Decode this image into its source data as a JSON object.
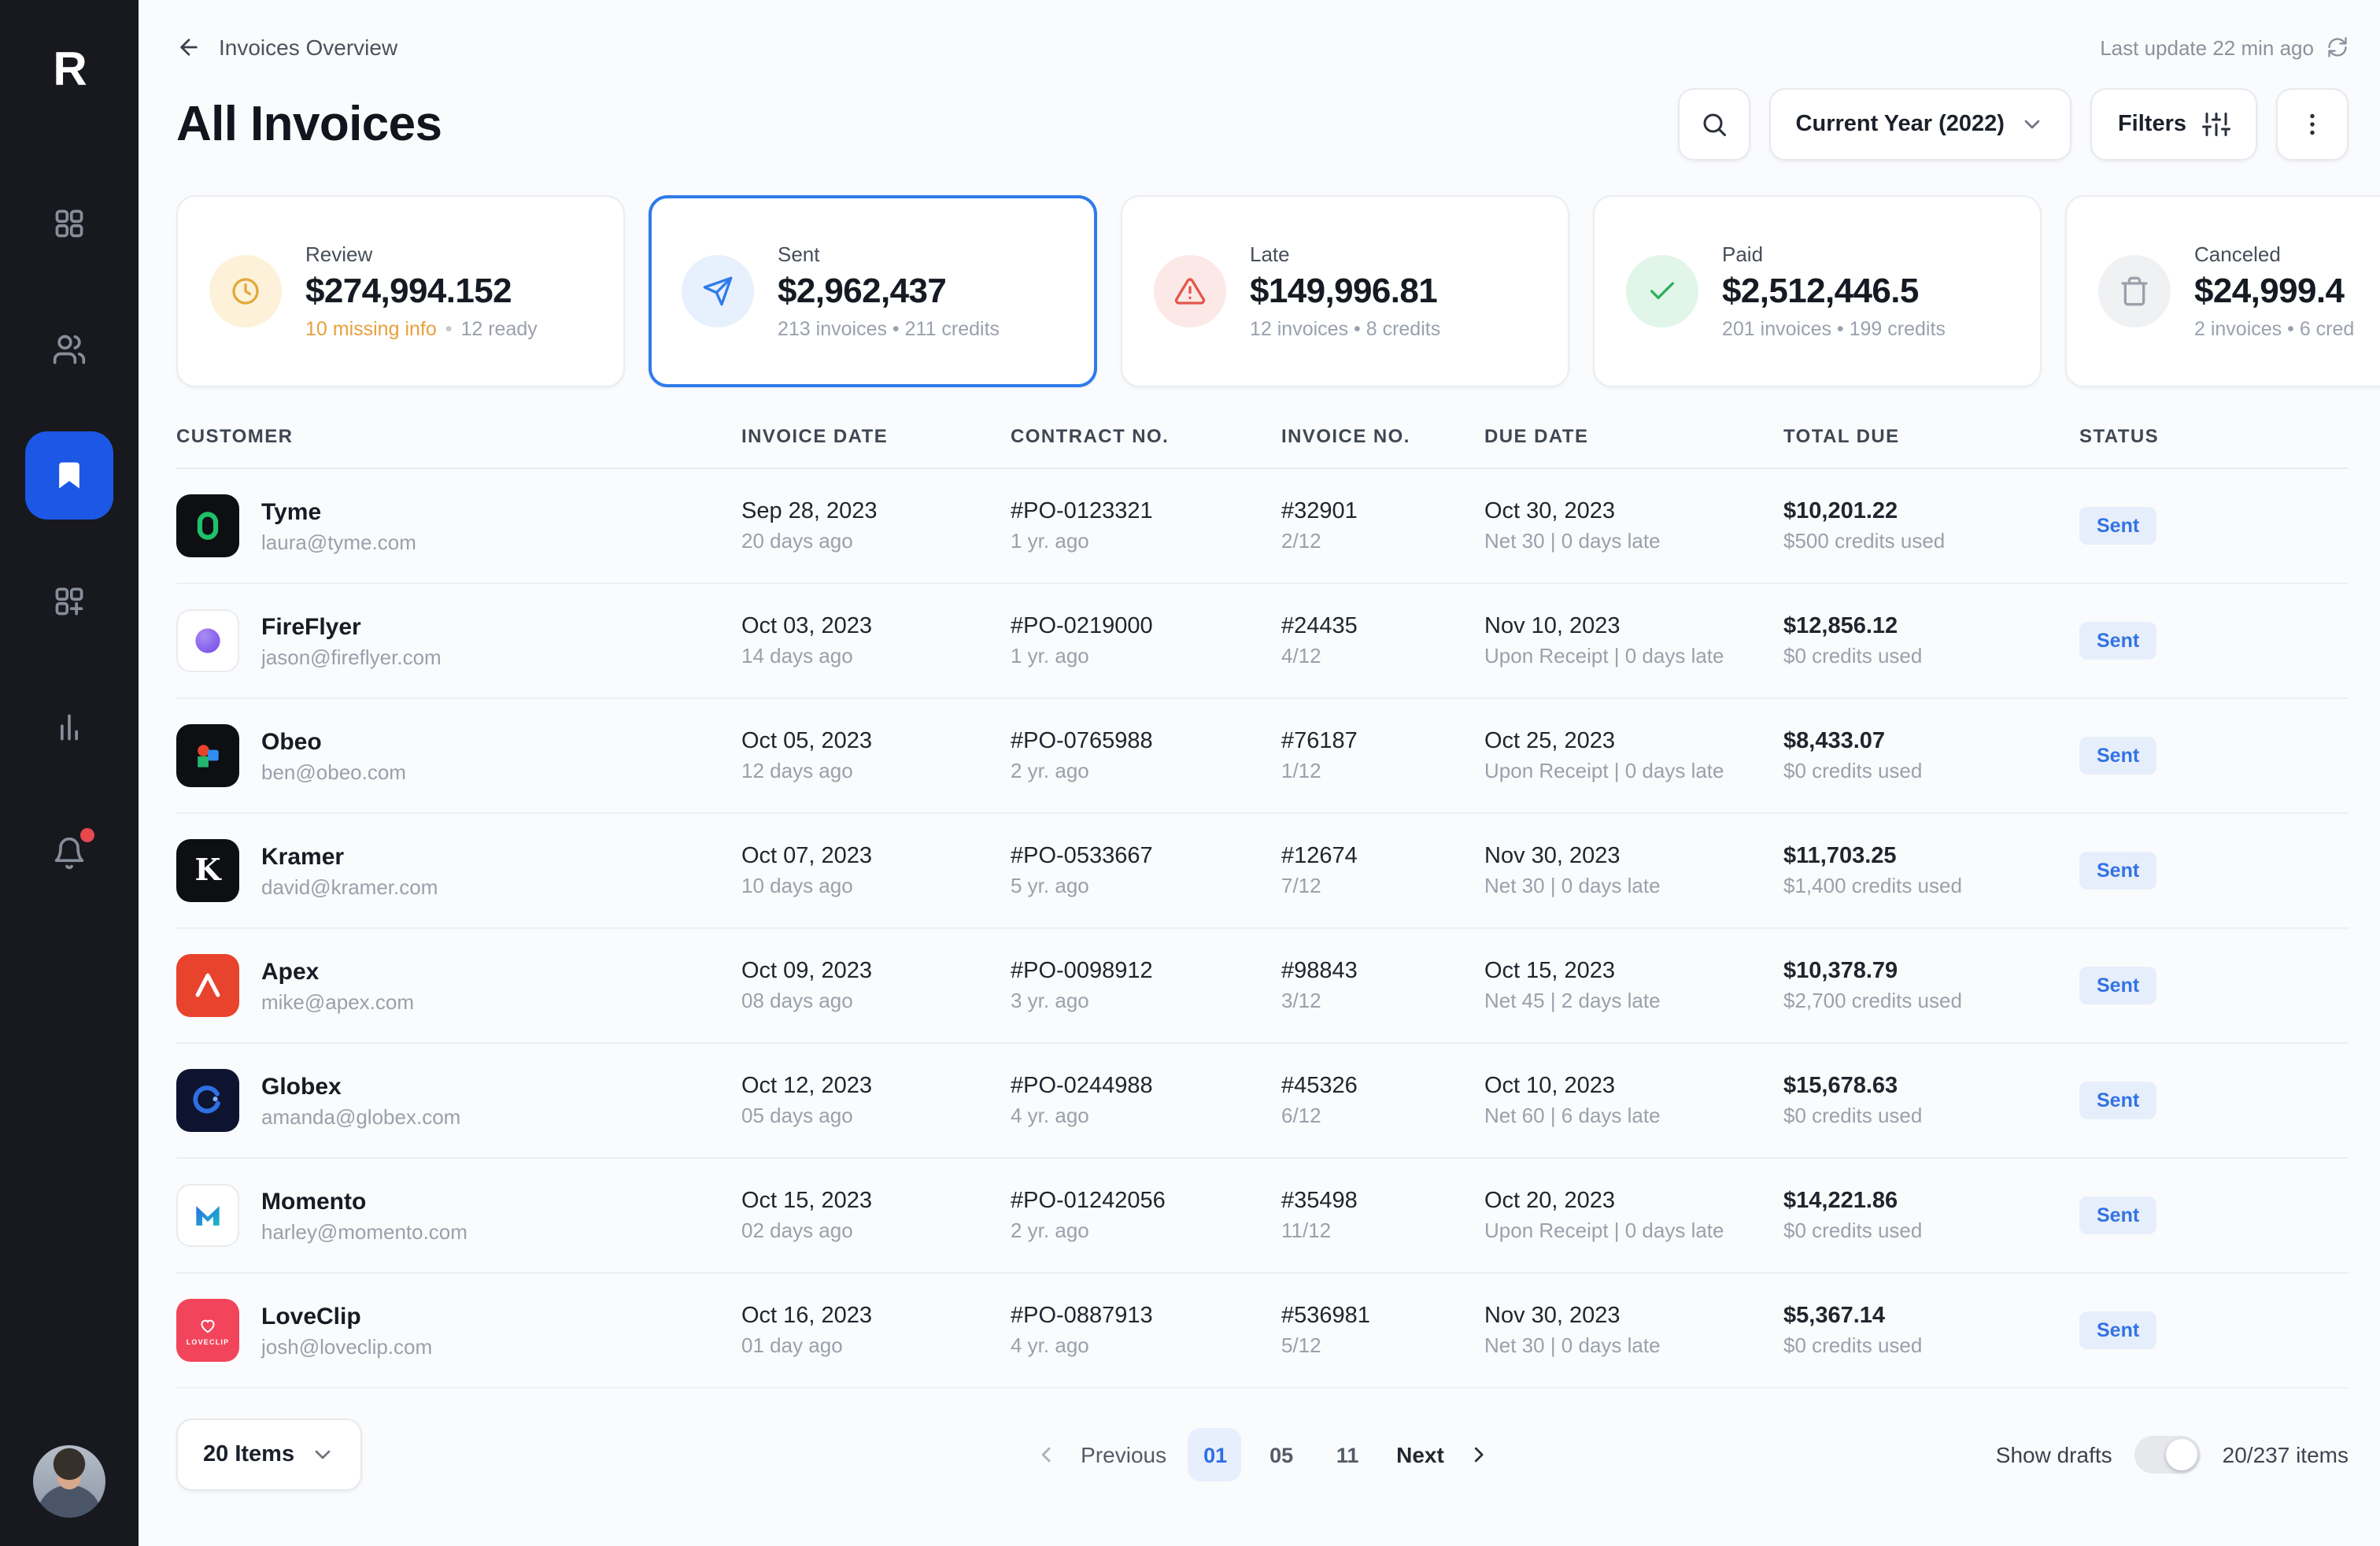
{
  "app": {
    "logo_letter": "R"
  },
  "ui": {
    "bullet": "•"
  },
  "colors": {
    "accent_blue": "#2f6fe4",
    "sidebar_active": "#1d57e6",
    "badge_bg": "#e7eefb",
    "warning_orange": "#e7a03c",
    "danger_red": "#e2574c",
    "success_green": "#2fae5d",
    "sidebar_bg": "#17191f"
  },
  "sidebar": {
    "items": [
      {
        "key": "apps",
        "icon": "apps-grid-icon"
      },
      {
        "key": "customers",
        "icon": "users-icon"
      },
      {
        "key": "invoices",
        "icon": "bookmark-icon",
        "active": true
      },
      {
        "key": "widgets",
        "icon": "widgets-icon"
      },
      {
        "key": "reports",
        "icon": "bar-chart-icon"
      },
      {
        "key": "notifications",
        "icon": "bell-icon",
        "badge": true
      }
    ]
  },
  "header": {
    "breadcrumb": "Invoices Overview",
    "last_update": "Last update 22 min ago",
    "title": "All Invoices",
    "year_filter": "Current Year (2022)",
    "filters_label": "Filters"
  },
  "summary_cards": [
    {
      "label": "Review",
      "amount": "$274,994.152",
      "sub_em": "10 missing info",
      "sub": "12 ready",
      "icon": "clock-icon",
      "icon_bg": "#fdf2d9",
      "icon_color": "#e2a93b",
      "selected": false
    },
    {
      "label": "Sent",
      "amount": "$2,962,437",
      "sub_em": "",
      "sub": "213 invoices • 211 credits",
      "icon": "send-icon",
      "icon_bg": "#e7f0fd",
      "icon_color": "#2f7bea",
      "selected": true
    },
    {
      "label": "Late",
      "amount": "$149,996.81",
      "sub_em": "",
      "sub": "12 invoices • 8 credits",
      "icon": "alert-icon",
      "icon_bg": "#fce9e7",
      "icon_color": "#e2574c",
      "selected": false
    },
    {
      "label": "Paid",
      "amount": "$2,512,446.5",
      "sub_em": "",
      "sub": "201 invoices • 199 credits",
      "icon": "check-icon",
      "icon_bg": "#e1f6e9",
      "icon_color": "#2fae5d",
      "selected": false
    },
    {
      "label": "Canceled",
      "amount": "$24,999.4",
      "sub_em": "",
      "sub": "2 invoices • 6 cred",
      "icon": "trash-icon",
      "icon_bg": "#f0f1f3",
      "icon_color": "#9aa1ab",
      "selected": false
    }
  ],
  "table": {
    "columns": [
      "CUSTOMER",
      "INVOICE DATE",
      "CONTRACT NO.",
      "INVOICE NO.",
      "DUE DATE",
      "TOTAL DUE",
      "STATUS"
    ],
    "rows": [
      {
        "customer": "Tyme",
        "email": "laura@tyme.com",
        "logo": {
          "kind": "ring",
          "bg": "#0d0f12",
          "fg": "#1fc06a"
        },
        "invoice_date": "Sep 28, 2023",
        "invoice_date_sub": "20 days ago",
        "contract_no": "#PO-0123321",
        "contract_sub": "1 yr. ago",
        "invoice_no": "#32901",
        "invoice_no_sub": "2/12",
        "due_date": "Oct 30, 2023",
        "due_sub": "Net 30 | 0 days late",
        "total_due": "$10,201.22",
        "total_sub": "$500 credits used",
        "status": "Sent"
      },
      {
        "customer": "FireFlyer",
        "email": "jason@fireflyer.com",
        "logo": {
          "kind": "blob",
          "bg": "#ffffff",
          "fg": "#7a52ea",
          "border": true
        },
        "invoice_date": "Oct 03, 2023",
        "invoice_date_sub": "14 days ago",
        "contract_no": "#PO-0219000",
        "contract_sub": "1 yr. ago",
        "invoice_no": "#24435",
        "invoice_no_sub": "4/12",
        "due_date": "Nov 10, 2023",
        "due_sub": "Upon Receipt | 0 days late",
        "total_due": "$12,856.12",
        "total_sub": "$0 credits used",
        "status": "Sent"
      },
      {
        "customer": "Obeo",
        "email": "ben@obeo.com",
        "logo": {
          "kind": "shapes",
          "bg": "#0d0f12",
          "fg": "#e8432d"
        },
        "invoice_date": "Oct 05, 2023",
        "invoice_date_sub": "12 days ago",
        "contract_no": "#PO-0765988",
        "contract_sub": "2 yr. ago",
        "invoice_no": "#76187",
        "invoice_no_sub": "1/12",
        "due_date": "Oct 25, 2023",
        "due_sub": "Upon Receipt | 0 days late",
        "total_due": "$8,433.07",
        "total_sub": "$0 credits used",
        "status": "Sent"
      },
      {
        "customer": "Kramer",
        "email": "david@kramer.com",
        "logo": {
          "kind": "letter-k",
          "bg": "#0d0f12",
          "fg": "#ffffff"
        },
        "invoice_date": "Oct 07, 2023",
        "invoice_date_sub": "10 days ago",
        "contract_no": "#PO-0533667",
        "contract_sub": "5 yr. ago",
        "invoice_no": "#12674",
        "invoice_no_sub": "7/12",
        "due_date": "Nov 30, 2023",
        "due_sub": "Net 30 | 0 days late",
        "total_due": "$11,703.25",
        "total_sub": "$1,400 credits used",
        "status": "Sent"
      },
      {
        "customer": "Apex",
        "email": "mike@apex.com",
        "logo": {
          "kind": "peak",
          "bg": "#e8432d",
          "fg": "#ffffff"
        },
        "invoice_date": "Oct 09, 2023",
        "invoice_date_sub": "08 days ago",
        "contract_no": "#PO-0098912",
        "contract_sub": "3 yr. ago",
        "invoice_no": "#98843",
        "invoice_no_sub": "3/12",
        "due_date": "Oct 15, 2023",
        "due_sub": "Net 45 | 2 days late",
        "total_due": "$10,378.79",
        "total_sub": "$2,700 credits used",
        "status": "Sent"
      },
      {
        "customer": "Globex",
        "email": "amanda@globex.com",
        "logo": {
          "kind": "crescent",
          "bg": "#0e1430",
          "fg": "#2f6fe4"
        },
        "invoice_date": "Oct 12, 2023",
        "invoice_date_sub": "05 days ago",
        "contract_no": "#PO-0244988",
        "contract_sub": "4 yr. ago",
        "invoice_no": "#45326",
        "invoice_no_sub": "6/12",
        "due_date": "Oct 10, 2023",
        "due_sub": "Net 60 | 6 days late",
        "total_due": "$15,678.63",
        "total_sub": "$0 credits used",
        "status": "Sent"
      },
      {
        "customer": "Momento",
        "email": "harley@momento.com",
        "logo": {
          "kind": "letter-m",
          "bg": "#ffffff",
          "fg": "#2f6fe4",
          "border": true
        },
        "invoice_date": "Oct 15, 2023",
        "invoice_date_sub": "02 days ago",
        "contract_no": "#PO-01242056",
        "contract_sub": "2 yr. ago",
        "invoice_no": "#35498",
        "invoice_no_sub": "11/12",
        "due_date": "Oct 20, 2023",
        "due_sub": "Upon Receipt | 0 days late",
        "total_due": "$14,221.86",
        "total_sub": "$0 credits used",
        "status": "Sent"
      },
      {
        "customer": "LoveClip",
        "email": "josh@loveclip.com",
        "logo": {
          "kind": "heart",
          "bg": "#f2455c",
          "fg": "#ffffff",
          "text": "LOVECLIP"
        },
        "invoice_date": "Oct 16, 2023",
        "invoice_date_sub": "01 day ago",
        "contract_no": "#PO-0887913",
        "contract_sub": "4 yr. ago",
        "invoice_no": "#536981",
        "invoice_no_sub": "5/12",
        "due_date": "Nov 30, 2023",
        "due_sub": "Net 30 | 0 days late",
        "total_due": "$5,367.14",
        "total_sub": "$0 credits used",
        "status": "Sent"
      }
    ]
  },
  "footer": {
    "items_per_page": "20 Items",
    "pagination": {
      "previous": "Previous",
      "pages": [
        "01",
        "05",
        "11"
      ],
      "active": "01",
      "next": "Next"
    },
    "show_drafts": "Show drafts",
    "items_count": "20/237 items"
  }
}
